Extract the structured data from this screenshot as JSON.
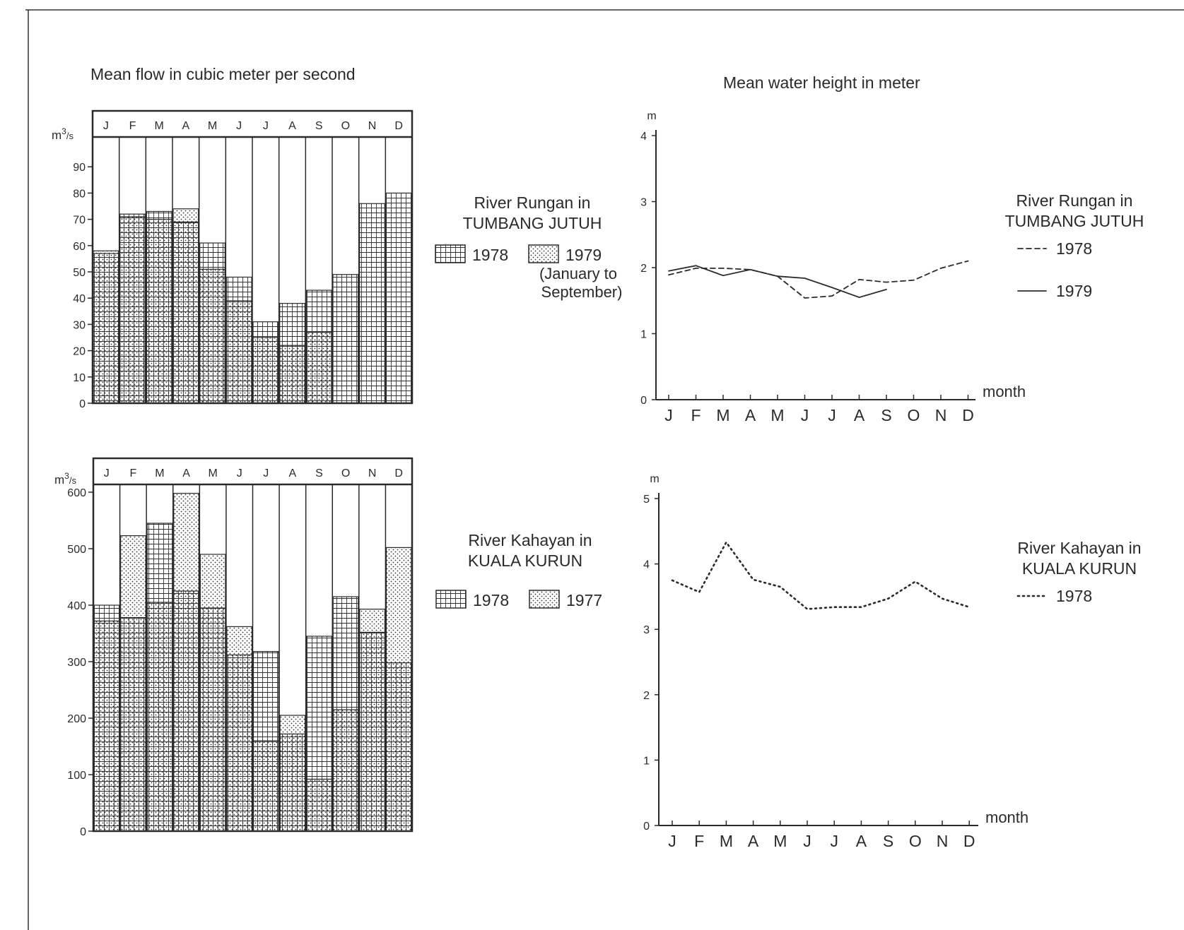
{
  "titles": {
    "flow": "Mean flow in cubic meter per second",
    "height": "Mean water height in meter"
  },
  "common": {
    "months": [
      "J",
      "F",
      "M",
      "A",
      "M",
      "J",
      "J",
      "A",
      "S",
      "O",
      "N",
      "D"
    ],
    "flow_unit": "m3/s",
    "height_unit": "m",
    "x_label": "month"
  },
  "labels": {
    "rungan_line1": "River Rungan in",
    "rungan_line2": "TUMBANG JUTUH",
    "kahayan_line1": "River Kahayan in",
    "kahayan_line2": "KUALA KURUN",
    "rungan_note1": "(January to",
    "rungan_note2": "September)"
  },
  "chart_data": [
    {
      "type": "bar",
      "title": "Mean flow in cubic meter per second",
      "location": "River Rungan in TUMBANG JUTUH",
      "categories": [
        "J",
        "F",
        "M",
        "A",
        "M",
        "J",
        "J",
        "A",
        "S",
        "O",
        "N",
        "D"
      ],
      "ylabel": "m3/s",
      "ylim": [
        0,
        100
      ],
      "yticks": [
        0,
        10,
        20,
        30,
        40,
        50,
        60,
        70,
        80,
        90
      ],
      "series": [
        {
          "name": "1978",
          "pattern": "grid",
          "values": [
            57,
            72,
            73,
            69,
            61,
            48,
            31,
            38,
            43,
            49,
            76,
            80
          ]
        },
        {
          "name": "1979",
          "pattern": "dots",
          "values": [
            58,
            71,
            70,
            74,
            51,
            39,
            25,
            22,
            27,
            null,
            null,
            null
          ]
        }
      ],
      "legend": "right",
      "note": "(January to September)"
    },
    {
      "type": "line",
      "title": "Mean water height in meter",
      "location": "River Rungan in TUMBANG JUTUH",
      "x": [
        "J",
        "F",
        "M",
        "A",
        "M",
        "J",
        "J",
        "A",
        "S",
        "O",
        "N",
        "D"
      ],
      "xlabel": "month",
      "ylabel": "m",
      "ylim": [
        0,
        4
      ],
      "yticks": [
        0,
        1,
        2,
        3,
        4
      ],
      "series": [
        {
          "name": "1978",
          "style": "dashed",
          "values": [
            1.89,
            1.99,
            1.99,
            1.97,
            1.87,
            1.54,
            1.57,
            1.82,
            1.78,
            1.81,
            1.99,
            2.1
          ]
        },
        {
          "name": "1979",
          "style": "solid",
          "values": [
            1.95,
            2.03,
            1.88,
            1.97,
            1.87,
            1.84,
            1.7,
            1.55,
            1.67,
            null,
            null,
            null
          ]
        }
      ],
      "legend": "right"
    },
    {
      "type": "bar",
      "location": "River Kahayan in KUALA KURUN",
      "categories": [
        "J",
        "F",
        "M",
        "A",
        "M",
        "J",
        "J",
        "A",
        "S",
        "O",
        "N",
        "D"
      ],
      "ylabel": "m3/s",
      "ylim": [
        0,
        650
      ],
      "yticks": [
        0,
        100,
        200,
        300,
        400,
        500,
        600
      ],
      "series": [
        {
          "name": "1978",
          "pattern": "grid",
          "values": [
            400,
            378,
            545,
            425,
            395,
            312,
            318,
            172,
            345,
            415,
            352,
            298
          ]
        },
        {
          "name": "1977",
          "pattern": "dots",
          "values": [
            372,
            523,
            405,
            598,
            490,
            362,
            160,
            205,
            92,
            215,
            393,
            502
          ]
        }
      ],
      "legend": "right"
    },
    {
      "type": "line",
      "location": "River Kahayan in KUALA KURUN",
      "x": [
        "J",
        "F",
        "M",
        "A",
        "M",
        "J",
        "J",
        "A",
        "S",
        "O",
        "N",
        "D"
      ],
      "xlabel": "month",
      "ylabel": "m",
      "ylim": [
        0,
        5
      ],
      "yticks": [
        0,
        1,
        2,
        3,
        4,
        5
      ],
      "series": [
        {
          "name": "1978",
          "style": "dotted",
          "values": [
            3.75,
            3.57,
            4.33,
            3.76,
            3.65,
            3.31,
            3.34,
            3.34,
            3.47,
            3.73,
            3.47,
            3.34
          ]
        }
      ],
      "legend": "right"
    }
  ]
}
